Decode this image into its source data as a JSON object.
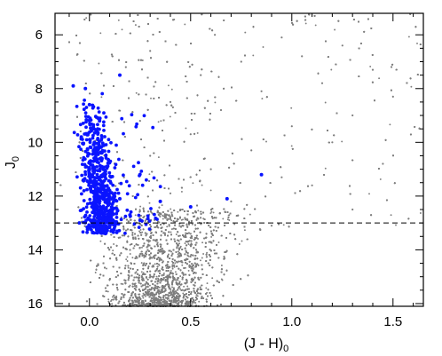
{
  "chart_data": {
    "type": "scatter",
    "title": "",
    "xlabel": "(J - H)",
    "xlabel_subscript": "0",
    "ylabel": "J",
    "ylabel_subscript": "0",
    "xlim": [
      -0.17,
      1.65
    ],
    "ylim": [
      16.1,
      5.2
    ],
    "y_inverted": true,
    "grid": false,
    "x_ticks": [
      {
        "value": 0.0,
        "label": "0.0"
      },
      {
        "value": 0.5,
        "label": "0.5"
      },
      {
        "value": 1.0,
        "label": "1.0"
      },
      {
        "value": 1.5,
        "label": "1.5"
      }
    ],
    "y_ticks": [
      {
        "value": 6,
        "label": "6"
      },
      {
        "value": 8,
        "label": "8"
      },
      {
        "value": 10,
        "label": "10"
      },
      {
        "value": 12,
        "label": "12"
      },
      {
        "value": 14,
        "label": "14"
      },
      {
        "value": 16,
        "label": "16"
      }
    ],
    "reference_line": {
      "y": 13.0,
      "style": "dashed",
      "color": "#000000"
    },
    "series": [
      {
        "color": "#7f7f7f",
        "point_count": 12000,
        "points": [
          [
            0.62,
            6.0
          ],
          [
            0.95,
            6.1
          ],
          [
            1.25,
            6.4
          ],
          [
            0.3,
            6.6
          ],
          [
            1.05,
            6.8
          ],
          [
            0.75,
            7.0
          ],
          [
            0.18,
            7.2
          ],
          [
            1.4,
            7.3
          ],
          [
            0.55,
            7.5
          ],
          [
            1.15,
            7.8
          ],
          [
            0.85,
            8.1
          ],
          [
            1.5,
            8.3
          ],
          [
            0.4,
            8.5
          ],
          [
            0.65,
            8.8
          ],
          [
            1.3,
            9.0
          ],
          [
            0.25,
            9.2
          ],
          [
            1.0,
            9.4
          ],
          [
            0.5,
            9.7
          ],
          [
            1.2,
            10.0
          ],
          [
            0.8,
            10.3
          ],
          [
            0.3,
            10.5
          ],
          [
            1.45,
            10.8
          ],
          [
            0.6,
            11.0
          ],
          [
            0.95,
            11.3
          ],
          [
            1.1,
            11.6
          ],
          [
            0.4,
            11.9
          ],
          [
            0.7,
            12.2
          ],
          [
            1.3,
            12.5
          ],
          [
            0.2,
            12.8
          ],
          [
            0.9,
            13.1
          ],
          [
            0.5,
            13.4
          ],
          [
            0.35,
            13.8
          ],
          [
            0.15,
            14.2
          ],
          [
            0.3,
            14.8
          ],
          [
            0.45,
            15.3
          ],
          [
            0.6,
            15.7
          ]
        ]
      },
      {
        "color": "#0a14ff",
        "point_count": 700,
        "points": [
          [
            -0.08,
            7.9
          ],
          [
            -0.02,
            8.0
          ],
          [
            0.15,
            7.5
          ],
          [
            0.0,
            8.6
          ],
          [
            0.05,
            9.2
          ],
          [
            -0.04,
            9.8
          ],
          [
            0.02,
            10.3
          ],
          [
            0.06,
            10.9
          ],
          [
            -0.03,
            11.4
          ],
          [
            0.1,
            11.8
          ],
          [
            0.15,
            12.1
          ],
          [
            0.04,
            12.5
          ],
          [
            0.2,
            12.7
          ],
          [
            -0.05,
            13.0
          ],
          [
            0.08,
            13.2
          ],
          [
            0.25,
            12.9
          ],
          [
            0.35,
            12.2
          ],
          [
            0.5,
            12.4
          ],
          [
            0.68,
            12.1
          ],
          [
            0.85,
            11.2
          ]
        ]
      }
    ]
  }
}
